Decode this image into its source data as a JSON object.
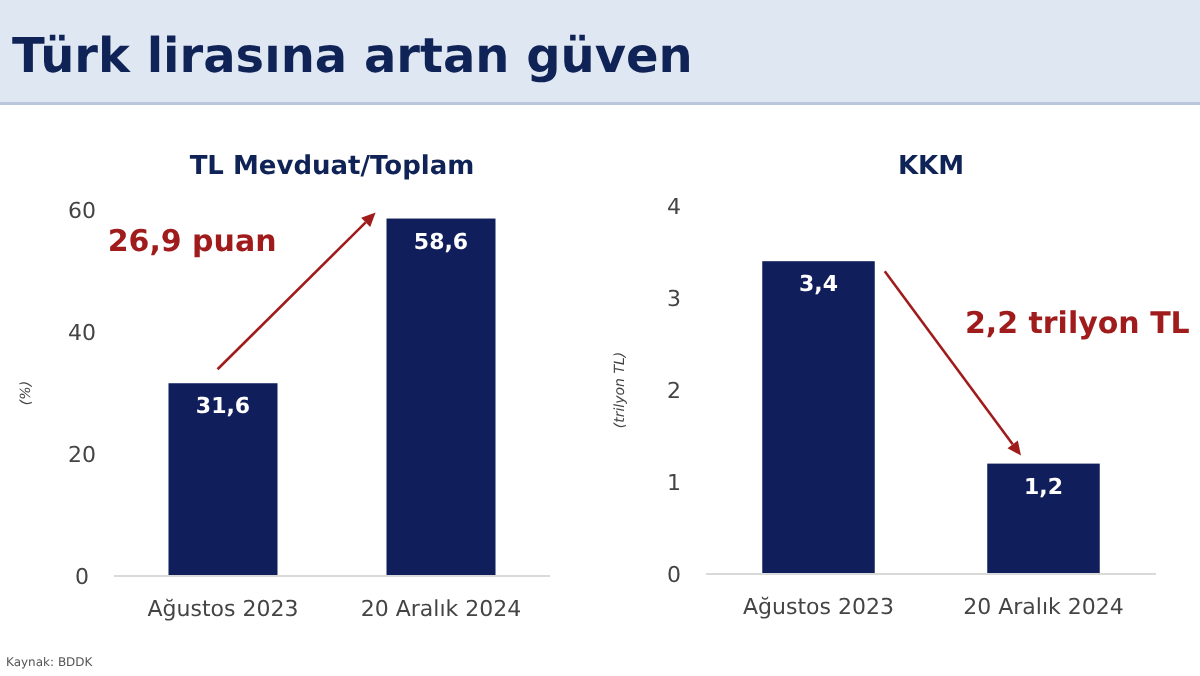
{
  "chart_data": [
    {
      "type": "other",
      "title": "Türk lirasına artan güven"
    },
    {
      "type": "bar",
      "title": "TL Mevduat/Toplam",
      "ylabel": "(%)",
      "categories": [
        "Ağustos 2023",
        "20 Aralık 2024"
      ],
      "values": [
        31.6,
        58.6
      ],
      "value_labels": [
        "31,6",
        "58,6"
      ],
      "color": "#101f5c",
      "ylim": [
        0,
        60
      ],
      "yticks": [
        0,
        20,
        40,
        60
      ],
      "grid": false,
      "annotations": [
        "26,9 puan",
        "Kaynak: BDDK"
      ]
    },
    {
      "type": "bar",
      "title": "KKM",
      "ylabel": "(trilyon TL)",
      "categories": [
        "Ağustos 2023",
        "20 Aralık 2024"
      ],
      "values": [
        3.4,
        1.2
      ],
      "value_labels": [
        "3,4",
        "1,2"
      ],
      "color": "#101f5c",
      "ylim": [
        0,
        4
      ],
      "yticks": [
        0,
        1,
        2,
        3,
        4
      ],
      "grid": false,
      "annotations": [
        "2,2 trilyon TL"
      ]
    }
  ]
}
